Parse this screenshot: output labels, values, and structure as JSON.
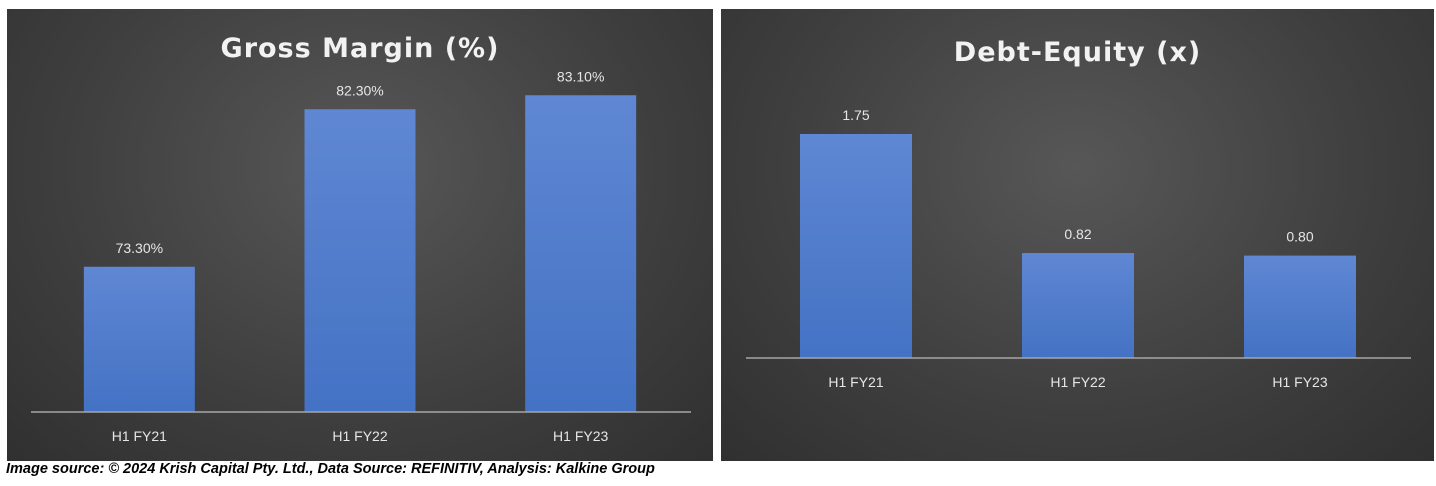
{
  "chart_data": [
    {
      "type": "bar",
      "title": "Gross Margin (%)",
      "categories": [
        "H1 FY21",
        "H1 FY22",
        "H1 FY23"
      ],
      "values": [
        73.3,
        82.3,
        83.1
      ],
      "value_labels": [
        "73.30%",
        "82.30%",
        "83.10%"
      ],
      "ylim": [
        65,
        85
      ],
      "grid": false,
      "bar_color": "#4472c4"
    },
    {
      "type": "bar",
      "title": "Debt-Equity (x)",
      "categories": [
        "H1 FY21",
        "H1 FY22",
        "H1 FY23"
      ],
      "values": [
        1.75,
        0.82,
        0.8
      ],
      "value_labels": [
        "1.75",
        "0.82",
        "0.80"
      ],
      "ylim": [
        0,
        2.0
      ],
      "grid": false,
      "bar_color": "#4472c4"
    }
  ],
  "caption": "Image source: © 2024 Krish Capital Pty. Ltd., Data Source: REFINITIV, Analysis: Kalkine Group"
}
